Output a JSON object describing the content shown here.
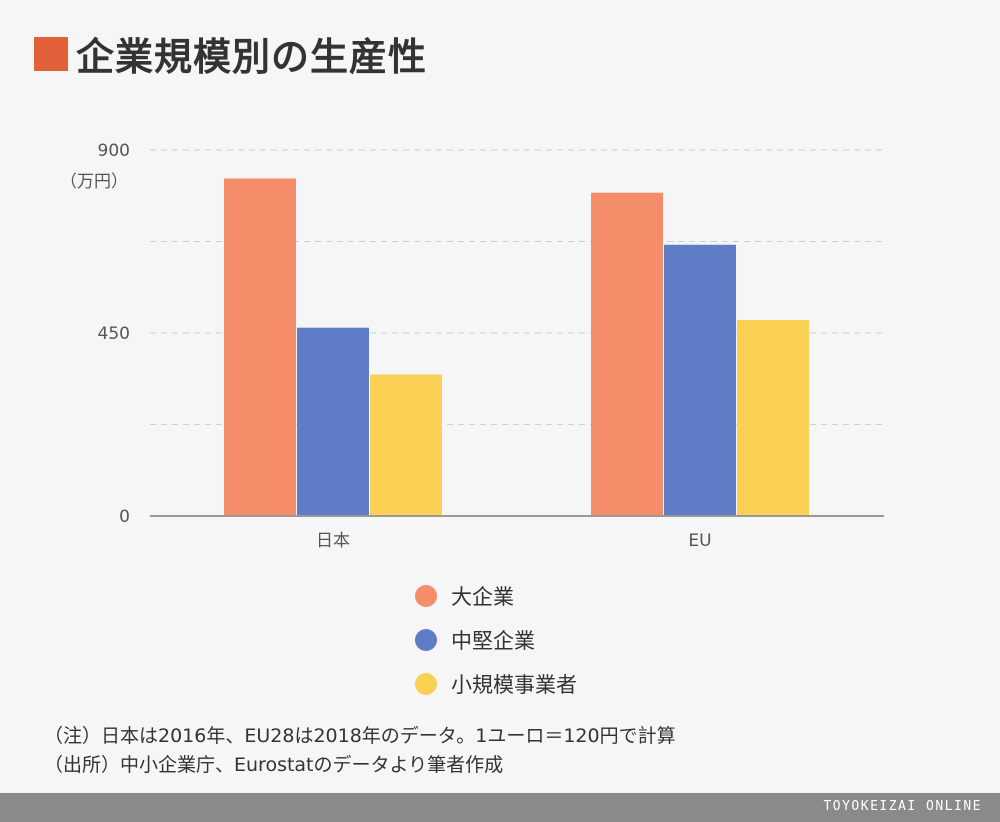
{
  "title": "企業規模別の生産性",
  "unit": "（万円）",
  "chart_data": {
    "type": "bar",
    "categories": [
      "日本",
      "EU"
    ],
    "series": [
      {
        "name": "大企業",
        "values": [
          830,
          795
        ],
        "color": "#f58c6a"
      },
      {
        "name": "中堅企業",
        "values": [
          463,
          667
        ],
        "color": "#5f7cc6"
      },
      {
        "name": "小規模事業者",
        "values": [
          348,
          482
        ],
        "color": "#fbd155"
      }
    ],
    "ylim": [
      0,
      900
    ],
    "yticks": [
      0,
      450,
      900
    ],
    "grid_lines": [
      225,
      450,
      675,
      900
    ],
    "grid": true,
    "legend_position": "bottom"
  },
  "notes": [
    "（注）日本は2016年、EU28は2018年のデータ。1ユーロ＝120円で計算",
    "（出所）中小企業庁、Eurostatのデータより筆者作成"
  ],
  "footer": "TOYOKEIZAI ONLINE"
}
